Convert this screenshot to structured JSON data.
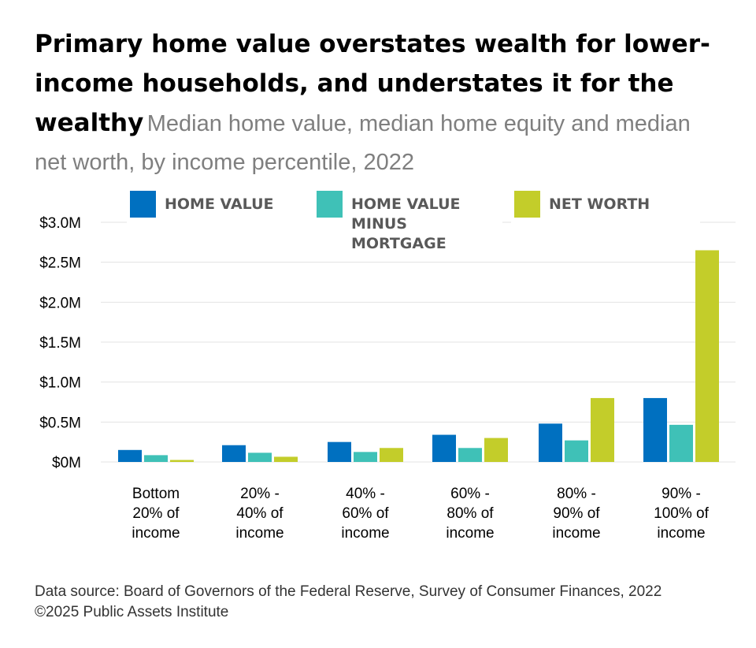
{
  "header": {
    "title": "Primary home value overstates wealth for lower-income households, and understates it for the wealthy",
    "subtitle": "Median home value, median home equity and median net worth, by income percentile, 2022"
  },
  "chart_data": {
    "type": "bar",
    "categories": [
      [
        "Bottom",
        "20% of",
        "income"
      ],
      [
        "20% -",
        "40% of",
        "income"
      ],
      [
        "40% -",
        "60% of",
        "income"
      ],
      [
        "60% -",
        "80% of",
        "income"
      ],
      [
        "80% -",
        "90% of",
        "income"
      ],
      [
        "90% -",
        "100% of",
        "income"
      ]
    ],
    "series": [
      {
        "name": "HOME VALUE",
        "legend_lines": [
          "HOME VALUE"
        ],
        "color": "#0070c0",
        "values": [
          150000,
          210000,
          250000,
          340000,
          480000,
          800000
        ]
      },
      {
        "name": "HOME VALUE MINUS MORTGAGE",
        "legend_lines": [
          "HOME VALUE",
          "MINUS",
          "MORTGAGE"
        ],
        "color": "#3fc1b7",
        "values": [
          85000,
          115000,
          125000,
          175000,
          270000,
          465000
        ]
      },
      {
        "name": "NET WORTH",
        "legend_lines": [
          "NET WORTH"
        ],
        "color": "#c3cd2a",
        "values": [
          25000,
          65000,
          175000,
          300000,
          800000,
          2650000
        ]
      }
    ],
    "yticks": [
      0,
      500000,
      1000000,
      1500000,
      2000000,
      2500000,
      3000000
    ],
    "ytick_labels": [
      "$0M",
      "$0.5M",
      "$1.0M",
      "$1.5M",
      "$2.0M",
      "$2.5M",
      "$3.0M"
    ],
    "ylim": [
      0,
      3000000
    ],
    "grid": true,
    "legend_position": "top"
  },
  "footer": {
    "source": "Data source: Board of Governors of the Federal Reserve, Survey of Consumer Finances, 2022",
    "copyright": "©2025 Public Assets Institute"
  }
}
